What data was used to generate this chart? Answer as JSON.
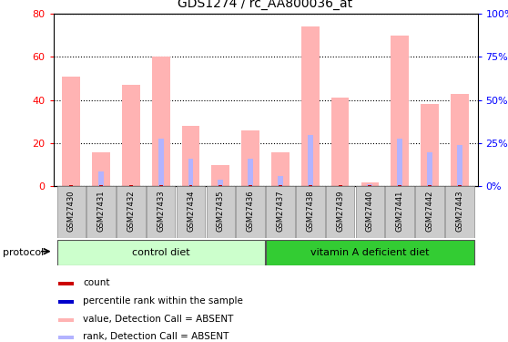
{
  "title": "GDS1274 / rc_AA800036_at",
  "samples": [
    "GSM27430",
    "GSM27431",
    "GSM27432",
    "GSM27433",
    "GSM27434",
    "GSM27435",
    "GSM27436",
    "GSM27437",
    "GSM27438",
    "GSM27439",
    "GSM27440",
    "GSM27441",
    "GSM27442",
    "GSM27443"
  ],
  "pink_bars": [
    51,
    16,
    47,
    60,
    28,
    10,
    26,
    16,
    74,
    41,
    2,
    70,
    38,
    43
  ],
  "blue_bars": [
    0,
    7,
    0,
    22,
    13,
    3,
    13,
    5,
    24,
    0,
    1,
    22,
    16,
    19
  ],
  "ylim_left": [
    0,
    80
  ],
  "ylim_right": [
    0,
    100
  ],
  "yticks_left": [
    0,
    20,
    40,
    60,
    80
  ],
  "ytick_labels_left": [
    "0",
    "20",
    "40",
    "60",
    "80"
  ],
  "yticks_right_vals": [
    0,
    25,
    50,
    75,
    100
  ],
  "ytick_labels_right": [
    "0%",
    "25%",
    "50%",
    "75%",
    "100%"
  ],
  "group1_label": "control diet",
  "group2_label": "vitamin A deficient diet",
  "protocol_label": "protocol",
  "legend_labels": [
    "count",
    "percentile rank within the sample",
    "value, Detection Call = ABSENT",
    "rank, Detection Call = ABSENT"
  ],
  "pink_color": "#ffb3b3",
  "blue_color": "#b3b3ff",
  "red_color": "#cc0000",
  "dark_blue_color": "#0000cc",
  "bar_width": 0.6,
  "group1_bg": "#ccffcc",
  "group2_bg": "#33cc33",
  "xtick_bg": "#cccccc",
  "n_control": 7,
  "n_total": 14
}
